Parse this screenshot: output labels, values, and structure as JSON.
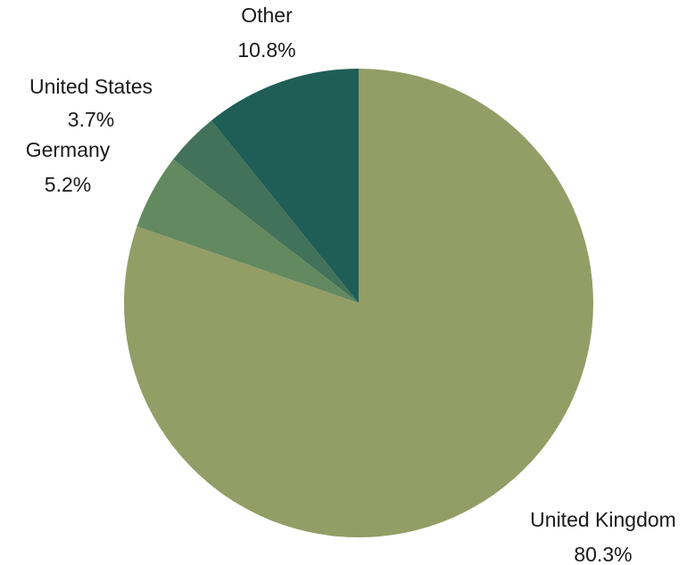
{
  "chart_data": {
    "type": "pie",
    "title": "",
    "start_angle": "12 o'clock",
    "direction": "clockwise",
    "slices": [
      {
        "label": "United Kingdom",
        "value": 80.3,
        "value_label": "80.3%",
        "color": "#939d66"
      },
      {
        "label": "Germany",
        "value": 5.2,
        "value_label": "5.2%",
        "color": "#638960"
      },
      {
        "label": "United States",
        "value": 3.7,
        "value_label": "3.7%",
        "color": "#427259"
      },
      {
        "label": "Other",
        "value": 10.8,
        "value_label": "10.8%",
        "color": "#1f5e57"
      }
    ]
  }
}
